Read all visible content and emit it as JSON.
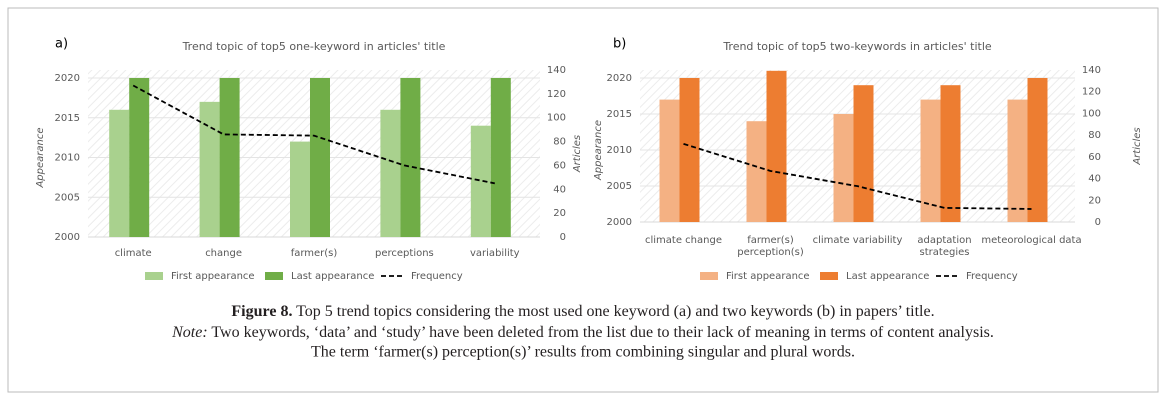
{
  "chart_data": [
    {
      "type": "bar",
      "panel": "a)",
      "title": "Trend topic of top5 one-keyword in articles' title",
      "ylabel": "Appearance",
      "y2label": "Articles",
      "categories": [
        "climate",
        "change",
        "farmer(s)",
        "perceptions",
        "variability"
      ],
      "series": [
        {
          "name": "First appearance",
          "type": "bar",
          "color": "#a9d18e",
          "values": [
            2016,
            2017,
            2012,
            2016,
            2014
          ]
        },
        {
          "name": "Last appearance",
          "type": "bar",
          "color": "#70ad47",
          "values": [
            2020,
            2020,
            2020,
            2020,
            2020
          ]
        },
        {
          "name": "Frequency",
          "type": "line",
          "axis": "y2",
          "color": "#000000",
          "values": [
            127,
            86,
            85,
            60,
            45
          ]
        }
      ],
      "ylim": [
        2000,
        2020
      ],
      "yticks": [
        2000,
        2005,
        2010,
        2015,
        2020
      ],
      "y2lim": [
        0,
        140
      ],
      "y2ticks": [
        0,
        20,
        40,
        60,
        80,
        100,
        120,
        140
      ],
      "grid": true,
      "legend": "bottom"
    },
    {
      "type": "bar",
      "panel": "b)",
      "title": "Trend topic of top5 two-keywords in articles' title",
      "ylabel": "Appearance",
      "y2label": "Articles",
      "categories": [
        "climate change",
        "farmer(s) perception(s)",
        "climate variability",
        "adaptation strategies",
        "meteorological data"
      ],
      "series": [
        {
          "name": "First appearance",
          "type": "bar",
          "color": "#f4b183",
          "values": [
            2017,
            2014,
            2015,
            2017,
            2017
          ]
        },
        {
          "name": "Last appearance",
          "type": "bar",
          "color": "#ed7d31",
          "values": [
            2020,
            2021,
            2019,
            2019,
            2020
          ]
        },
        {
          "name": "Frequency",
          "type": "line",
          "axis": "y2",
          "color": "#000000",
          "values": [
            72,
            47,
            33,
            13,
            12
          ]
        }
      ],
      "ylim": [
        2000,
        2020
      ],
      "yticks": [
        2000,
        2005,
        2010,
        2015,
        2020
      ],
      "y2lim": [
        0,
        140
      ],
      "y2ticks": [
        0,
        20,
        40,
        60,
        80,
        100,
        120,
        140
      ],
      "grid": true,
      "legend": "bottom"
    }
  ],
  "caption": {
    "label": "Figure 8.",
    "text": " Top 5 trend topics considering the most used one keyword (a) and two keywords (b) in papers’ title."
  },
  "note": {
    "label": "Note:",
    "text": " Two keywords, ‘data’ and ‘study’ have been deleted from the list due to their lack of meaning in terms of content analysis.",
    "text2": "The term ‘farmer(s) perception(s)’ results from combining singular and plural words."
  }
}
